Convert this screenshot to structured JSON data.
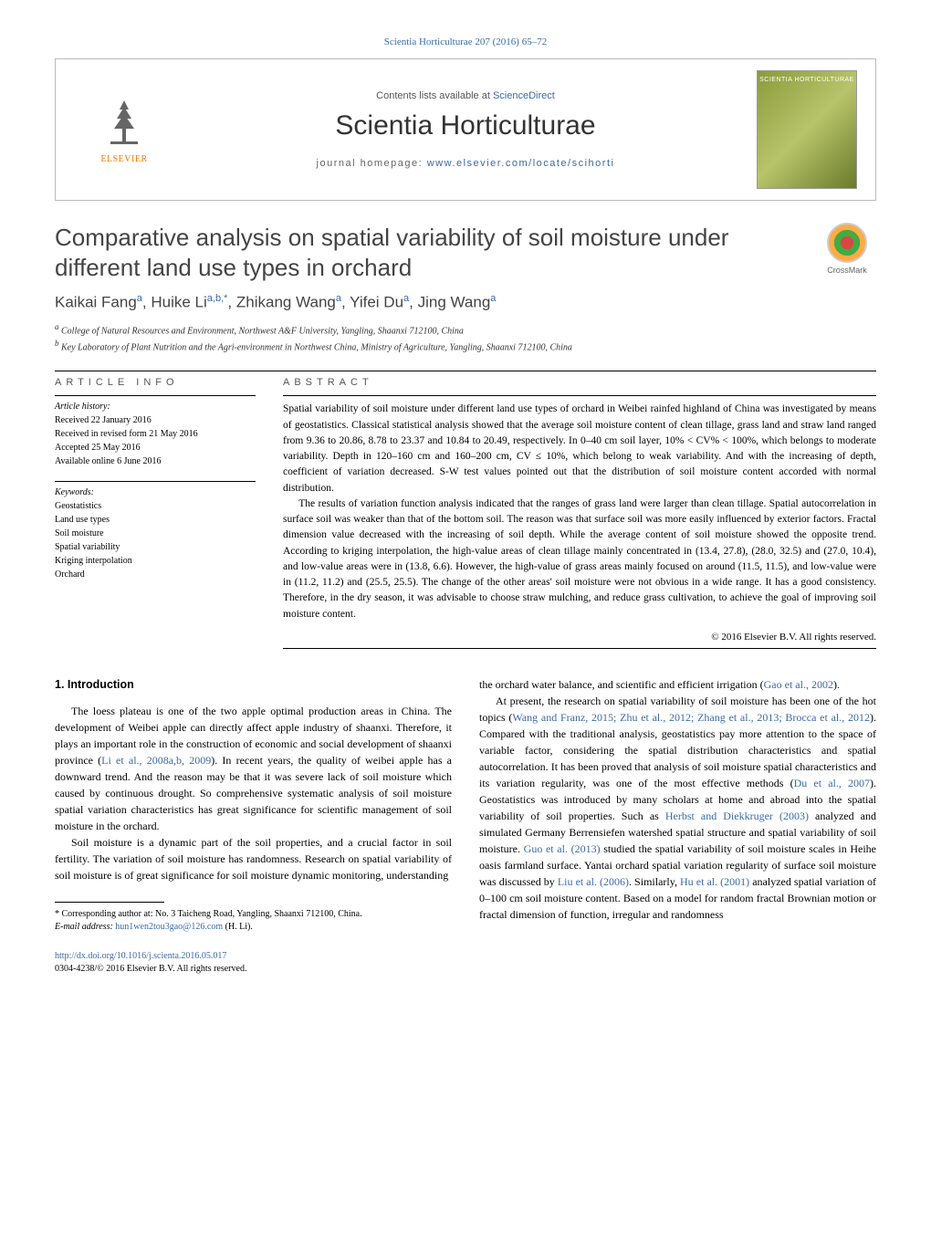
{
  "header_citation": "Scientia Horticulturae 207 (2016) 65–72",
  "contents_line": "Contents lists available at ",
  "contents_link": "ScienceDirect",
  "journal_name": "Scientia Horticulturae",
  "homepage_label": "journal homepage: ",
  "homepage_url": "www.elsevier.com/locate/scihorti",
  "elsevier_label": "ELSEVIER",
  "cover_label": "SCIENTIA HORTICULTURAE",
  "crossmark_label": "CrossMark",
  "title": "Comparative analysis on spatial variability of soil moisture under different land use types in orchard",
  "authors_html": "Kaikai Fang<sup>a</sup>, Huike Li<sup>a,b,*</sup>, Zhikang Wang<sup>a</sup>, Yifei Du<sup>a</sup>, Jing Wang<sup>a</sup>",
  "affiliations": [
    "a College of Natural Resources and Environment, Northwest A&F University, Yangling, Shaanxi 712100, China",
    "b Key Laboratory of Plant Nutrition and the Agri-environment in Northwest China, Ministry of Agriculture, Yangling, Shaanxi 712100, China"
  ],
  "article_info_heading": "article info",
  "abstract_heading": "abstract",
  "history_label": "Article history:",
  "history": [
    "Received 22 January 2016",
    "Received in revised form 21 May 2016",
    "Accepted 25 May 2016",
    "Available online 6 June 2016"
  ],
  "keywords_label": "Keywords:",
  "keywords": [
    "Geostatistics",
    "Land use types",
    "Soil moisture",
    "Spatial variability",
    "Kriging interpolation",
    "Orchard"
  ],
  "abstract_p1": "Spatial variability of soil moisture under different land use types of orchard in Weibei rainfed highland of China was investigated by means of geostatistics. Classical statistical analysis showed that the average soil moisture content of clean tillage, grass land and straw land ranged from 9.36 to 20.86, 8.78 to 23.37 and 10.84 to 20.49, respectively. In 0–40 cm soil layer, 10% < CV% < 100%, which belongs to moderate variability. Depth in 120–160 cm and 160–200 cm, CV ≤ 10%, which belong to weak variability. And with the increasing of depth, coefficient of variation decreased. S-W test values pointed out that the distribution of soil moisture content accorded with normal distribution.",
  "abstract_p2": "The results of variation function analysis indicated that the ranges of grass land were larger than clean tillage. Spatial autocorrelation in surface soil was weaker than that of the bottom soil. The reason was that surface soil was more easily influenced by exterior factors. Fractal dimension value decreased with the increasing of soil depth. While the average content of soil moisture showed the opposite trend. According to kriging interpolation, the high-value areas of clean tillage mainly concentrated in (13.4, 27.8), (28.0, 32.5) and (27.0, 10.4), and low-value areas were in (13.8, 6.6). However, the high-value of grass areas mainly focused on around (11.5, 11.5), and low-value were in (11.2, 11.2) and (25.5, 25.5). The change of the other areas' soil moisture were not obvious in a wide range. It has a good consistency. Therefore, in the dry season, it was advisable to choose straw mulching, and reduce grass cultivation, to achieve the goal of improving soil moisture content.",
  "copyright": "© 2016 Elsevier B.V. All rights reserved.",
  "section1_heading": "1. Introduction",
  "col1_p1_a": "The loess plateau is one of the two apple optimal production areas in China. The development of Weibei apple can directly affect apple industry of shaanxi. Therefore, it plays an important role in the construction of economic and social development of shaanxi province (",
  "col1_p1_ref": "Li et al., 2008a,b, 2009",
  "col1_p1_b": "). In recent years, the quality of weibei apple has a downward trend. And the reason may be that it was severe lack of soil moisture which caused by continuous drought. So comprehensive systematic analysis of soil moisture spatial variation characteristics has great significance for scientific management of soil moisture in the orchard.",
  "col1_p2": "Soil moisture is a dynamic part of the soil properties, and a crucial factor in soil fertility. The variation of soil moisture has randomness. Research on spatial variability of soil moisture is of great significance for soil moisture dynamic monitoring, understanding",
  "col2_p1_a": "the orchard water balance, and scientific and efficient irrigation (",
  "col2_p1_ref": "Gao et al., 2002",
  "col2_p1_b": ").",
  "col2_p2_a": "At present, the research on spatial variability of soil moisture has been one of the hot topics (",
  "col2_p2_ref1": "Wang and Franz, 2015; Zhu et al., 2012; Zhang et al., 2013; Brocca et al., 2012",
  "col2_p2_b": "). Compared with the traditional analysis, geostatistics pay more attention to the space of variable factor, considering the spatial distribution characteristics and spatial autocorrelation. It has been proved that analysis of soil moisture spatial characteristics and its variation regularity, was one of the most effective methods (",
  "col2_p2_ref2": "Du et al., 2007",
  "col2_p2_c": "). Geostatistics was introduced by many scholars at home and abroad into the spatial variability of soil properties. Such as ",
  "col2_p2_ref3": "Herbst and Diekkruger (2003)",
  "col2_p2_d": " analyzed and simulated Germany Berrensiefen watershed spatial structure and spatial variability of soil moisture. ",
  "col2_p2_ref4": "Guo et al. (2013)",
  "col2_p2_e": " studied the spatial variability of soil moisture scales in Heihe oasis farmland surface. Yantai orchard spatial variation regularity of surface soil moisture was discussed by ",
  "col2_p2_ref5": "Liu et al. (2006)",
  "col2_p2_f": ". Similarly, ",
  "col2_p2_ref6": "Hu et al. (2001)",
  "col2_p2_g": " analyzed spatial variation of 0–100 cm soil moisture content. Based on a model for random fractal Brownian motion or fractal dimension of function, irregular and randomness",
  "footnote_star": "* Corresponding author at: No. 3 Taicheng Road, Yangling, Shaanxi 712100, China.",
  "footnote_email_label": "E-mail address: ",
  "footnote_email": "hun1wen2tou3gao@126.com",
  "footnote_email_suffix": " (H. Li).",
  "doi_url": "http://dx.doi.org/10.1016/j.scienta.2016.05.017",
  "issn_line": "0304-4238/© 2016 Elsevier B.V. All rights reserved.",
  "colors": {
    "link": "#3a6aa8",
    "elsevier_orange": "#ff7a00",
    "text": "#000000",
    "heading_gray": "#555555"
  }
}
